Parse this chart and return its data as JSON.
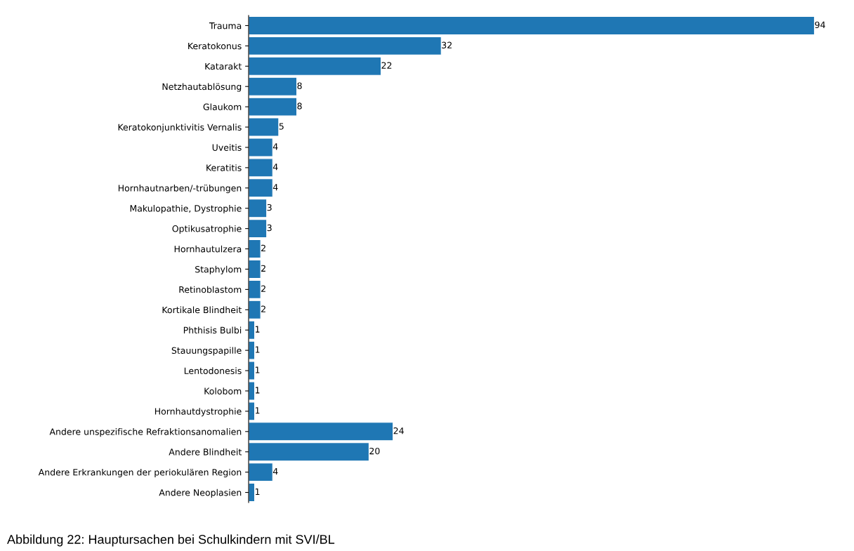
{
  "chart_data": {
    "type": "bar",
    "orientation": "horizontal",
    "categories": [
      "Trauma",
      "Keratokonus",
      "Katarakt",
      "Netzhautablösung",
      "Glaukom",
      "Keratokonjunktivitis Vernalis",
      "Uveitis",
      "Keratitis",
      "Hornhautnarben/-trübungen",
      "Makulopathie, Dystrophie",
      "Optikusatrophie",
      "Hornhautulzera",
      "Staphylom",
      "Retinoblastom",
      "Kortikale Blindheit",
      "Phthisis Bulbi",
      "Stauungspapille",
      "Lentodonesis",
      "Kolobom",
      "Hornhautdystrophie",
      "Andere unspezifische Refraktionsanomalien",
      "Andere Blindheit",
      "Andere Erkrankungen der periokulären Region",
      "Andere Neoplasien"
    ],
    "values": [
      94,
      32,
      22,
      8,
      8,
      5,
      4,
      4,
      4,
      3,
      3,
      2,
      2,
      2,
      2,
      1,
      1,
      1,
      1,
      1,
      24,
      20,
      4,
      1
    ],
    "color": "#1f77b4",
    "data_labels": true,
    "tick_labels": "y",
    "grid": false,
    "legend": false,
    "annotations": [
      "Abbildung 22: Hauptursachen bei Schulkindern mit SVI/BL"
    ]
  }
}
